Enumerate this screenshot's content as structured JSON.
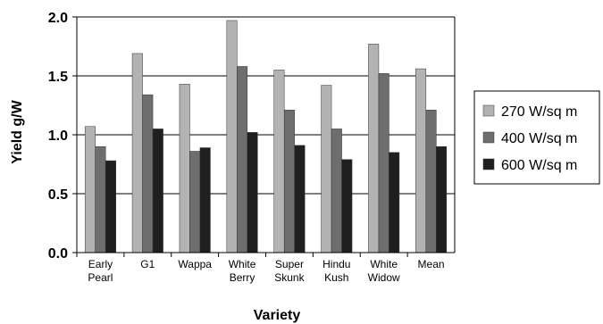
{
  "chart_data": {
    "type": "bar",
    "xlabel": "Variety",
    "ylabel": "Yield g/W",
    "ylim": [
      0,
      2.0
    ],
    "yticks": [
      "0.0",
      "0.5",
      "1.0",
      "1.5",
      "2.0"
    ],
    "grid": true,
    "legend_position": "right",
    "categories": [
      [
        "Early",
        "Pearl"
      ],
      [
        "G1"
      ],
      [
        "Wappa"
      ],
      [
        "White",
        "Berry"
      ],
      [
        "Super",
        "Skunk"
      ],
      [
        "Hindu",
        "Kush"
      ],
      [
        "White",
        "Widow"
      ],
      [
        "Mean"
      ]
    ],
    "series": [
      {
        "name": "270 W/sq m",
        "color": "#b3b3b3",
        "values": [
          1.07,
          1.69,
          1.43,
          1.97,
          1.55,
          1.42,
          1.77,
          1.56
        ]
      },
      {
        "name": "400 W/sq m",
        "color": "#6e6e6e",
        "values": [
          0.9,
          1.34,
          0.86,
          1.58,
          1.21,
          1.05,
          1.52,
          1.21
        ]
      },
      {
        "name": "600 W/sq m",
        "color": "#1f1f1f",
        "values": [
          0.78,
          1.05,
          0.89,
          1.02,
          0.91,
          0.79,
          0.85,
          0.9
        ]
      }
    ]
  }
}
